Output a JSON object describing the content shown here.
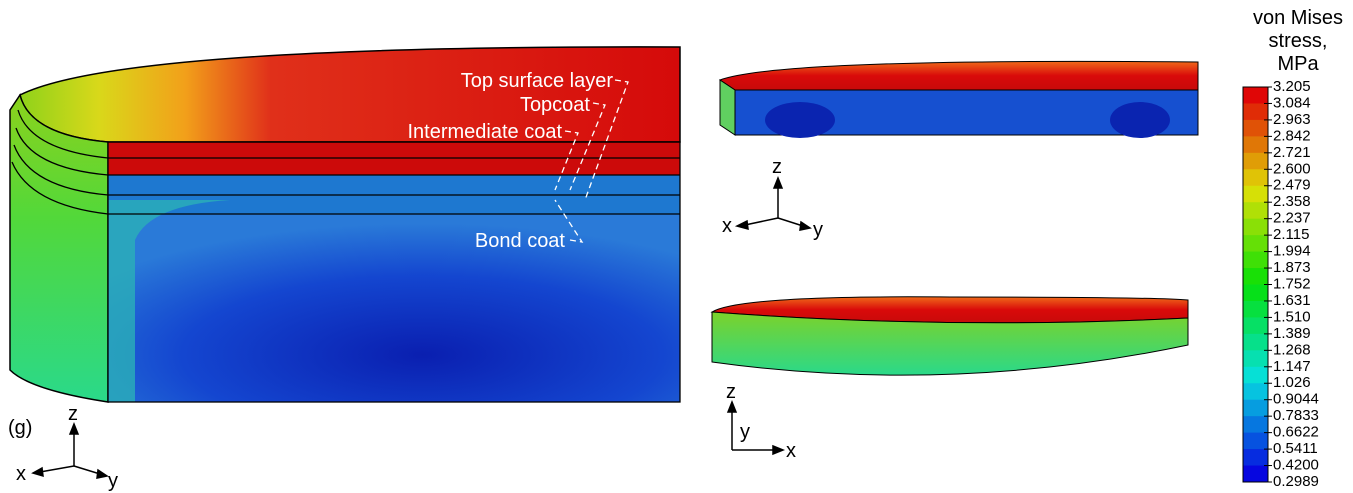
{
  "panel_label": "(g)",
  "annotations": [
    "Top surface layer",
    "Topcoat",
    "Intermediate coat",
    "Bond coat"
  ],
  "triads": [
    {
      "x": "x",
      "y": "y",
      "z": "z"
    },
    {
      "x": "x",
      "y": "y",
      "z": "z"
    },
    {
      "x": "x",
      "y": "y",
      "z": "z"
    }
  ],
  "colorbar": {
    "title": [
      "von Mises",
      "stress,",
      "MPa"
    ],
    "labels": [
      "3.205",
      "3.084",
      "2.963",
      "2.842",
      "2.721",
      "2.600",
      "2.479",
      "2.358",
      "2.237",
      "2.115",
      "1.994",
      "1.873",
      "1.752",
      "1.631",
      "1.510",
      "1.389",
      "1.268",
      "1.147",
      "1.026",
      "0.9044",
      "0.7833",
      "0.6622",
      "0.5411",
      "0.4200",
      "0.2989"
    ]
  }
}
